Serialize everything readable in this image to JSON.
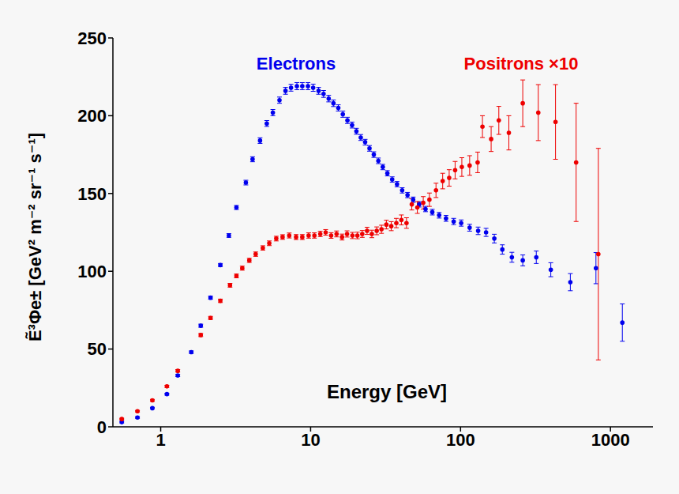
{
  "chart_data": {
    "type": "scatter",
    "x_label": "Energy [GeV]",
    "y_label": "Ẽ³Φe± [GeV² m⁻² sr⁻¹ s⁻¹]",
    "log": "x",
    "xlim": [
      0.48,
      1920
    ],
    "xticks": [
      1,
      10,
      100,
      1000
    ],
    "ylim": [
      0,
      250
    ],
    "yticks": [
      0,
      50,
      100,
      150,
      200,
      250
    ],
    "grid": false,
    "marker": "circle",
    "series": [
      {
        "name": "Electrons",
        "color": "#0000ee",
        "x": [
          0.55,
          0.7,
          0.88,
          1.1,
          1.3,
          1.6,
          1.85,
          2.15,
          2.5,
          2.85,
          3.2,
          3.7,
          4.1,
          4.6,
          5.1,
          5.6,
          6.2,
          6.8,
          7.4,
          8.1,
          8.8,
          9.6,
          10.4,
          11.3,
          12.2,
          13.2,
          14.2,
          15.3,
          16.4,
          17.6,
          18.9,
          20.2,
          21.6,
          23.1,
          24.7,
          26.4,
          28.3,
          30.3,
          32.5,
          35,
          37.7,
          40.8,
          44.3,
          48.3,
          53,
          58.4,
          64.8,
          72,
          80,
          90,
          101,
          115,
          131,
          148,
          168,
          190,
          220,
          260,
          320,
          400,
          540,
          800,
          1200
        ],
        "values": [
          3,
          6,
          12,
          21,
          33,
          48,
          65,
          83,
          104,
          123,
          141,
          157,
          172,
          184,
          195,
          202,
          210,
          216,
          218,
          219,
          219,
          219,
          218,
          216,
          214,
          211,
          208,
          205,
          201,
          197,
          194,
          190,
          186,
          183,
          179,
          175,
          171,
          167,
          163,
          159,
          156,
          152,
          149,
          146,
          143,
          140,
          138,
          136,
          134,
          132,
          131,
          128,
          126,
          125,
          121,
          114,
          109,
          107,
          109,
          101,
          93,
          102,
          67
        ],
        "errors": [
          0.5,
          0.5,
          0.5,
          0.6,
          0.7,
          0.8,
          1,
          1,
          1,
          1.2,
          1.3,
          1.5,
          1.6,
          1.8,
          1.9,
          2,
          2,
          2.2,
          2.2,
          2.3,
          2.3,
          2.3,
          2.3,
          2.2,
          2.2,
          2.1,
          2.1,
          2,
          2,
          2,
          1.9,
          1.9,
          1.9,
          1.8,
          1.8,
          1.8,
          1.8,
          1.7,
          1.7,
          1.7,
          1.7,
          1.7,
          1.7,
          1.7,
          1.7,
          1.7,
          1.8,
          1.8,
          1.9,
          2,
          2,
          2.2,
          2.4,
          2.6,
          2.8,
          3,
          3.2,
          3.5,
          4,
          4.5,
          5.5,
          10,
          12
        ]
      },
      {
        "name": "Positrons ×10",
        "color": "#ee0000",
        "x": [
          0.55,
          0.7,
          0.88,
          1.1,
          1.3,
          1.85,
          2.15,
          2.5,
          2.9,
          3.2,
          3.5,
          3.9,
          4.3,
          4.8,
          5.3,
          5.9,
          6.5,
          7.2,
          8,
          8.8,
          9.7,
          10.6,
          11.6,
          12.6,
          13.7,
          14.9,
          16.2,
          17.5,
          19,
          20.5,
          22.1,
          23.8,
          25.6,
          27.6,
          29.7,
          32,
          34.5,
          37.3,
          40.3,
          43.6,
          47.3,
          51.5,
          56.4,
          62,
          68.6,
          76,
          84,
          92,
          102,
          115,
          130,
          140,
          160,
          180,
          210,
          260,
          330,
          430,
          590,
          830
        ],
        "values": [
          5,
          10,
          17,
          26,
          36,
          59,
          70,
          81,
          91,
          97,
          102,
          107,
          111,
          115,
          118,
          121,
          122,
          123,
          122,
          122,
          123,
          123,
          124,
          125,
          123,
          124,
          122,
          124,
          123,
          123,
          124,
          126,
          124,
          126,
          127,
          130,
          129,
          131,
          133,
          131,
          143,
          141,
          144,
          146,
          152,
          158,
          160,
          165,
          167,
          168,
          170,
          193,
          185,
          197,
          189,
          208,
          202,
          196,
          170,
          111
        ],
        "errors": [
          0.5,
          0.5,
          0.6,
          0.7,
          0.8,
          1,
          1,
          1.1,
          1.2,
          1.2,
          1.3,
          1.3,
          1.4,
          1.4,
          1.5,
          1.5,
          1.5,
          1.6,
          1.6,
          1.6,
          1.7,
          1.7,
          1.7,
          1.8,
          1.8,
          1.9,
          1.9,
          2,
          2,
          2.1,
          2.2,
          2.3,
          2.4,
          2.5,
          2.6,
          2.8,
          2.9,
          3,
          3.2,
          3.4,
          3.6,
          3.8,
          4,
          4.3,
          4.6,
          5,
          5.3,
          5.6,
          6,
          6.3,
          6.6,
          7,
          8,
          9,
          11,
          15,
          18,
          24,
          38,
          68
        ]
      }
    ]
  }
}
